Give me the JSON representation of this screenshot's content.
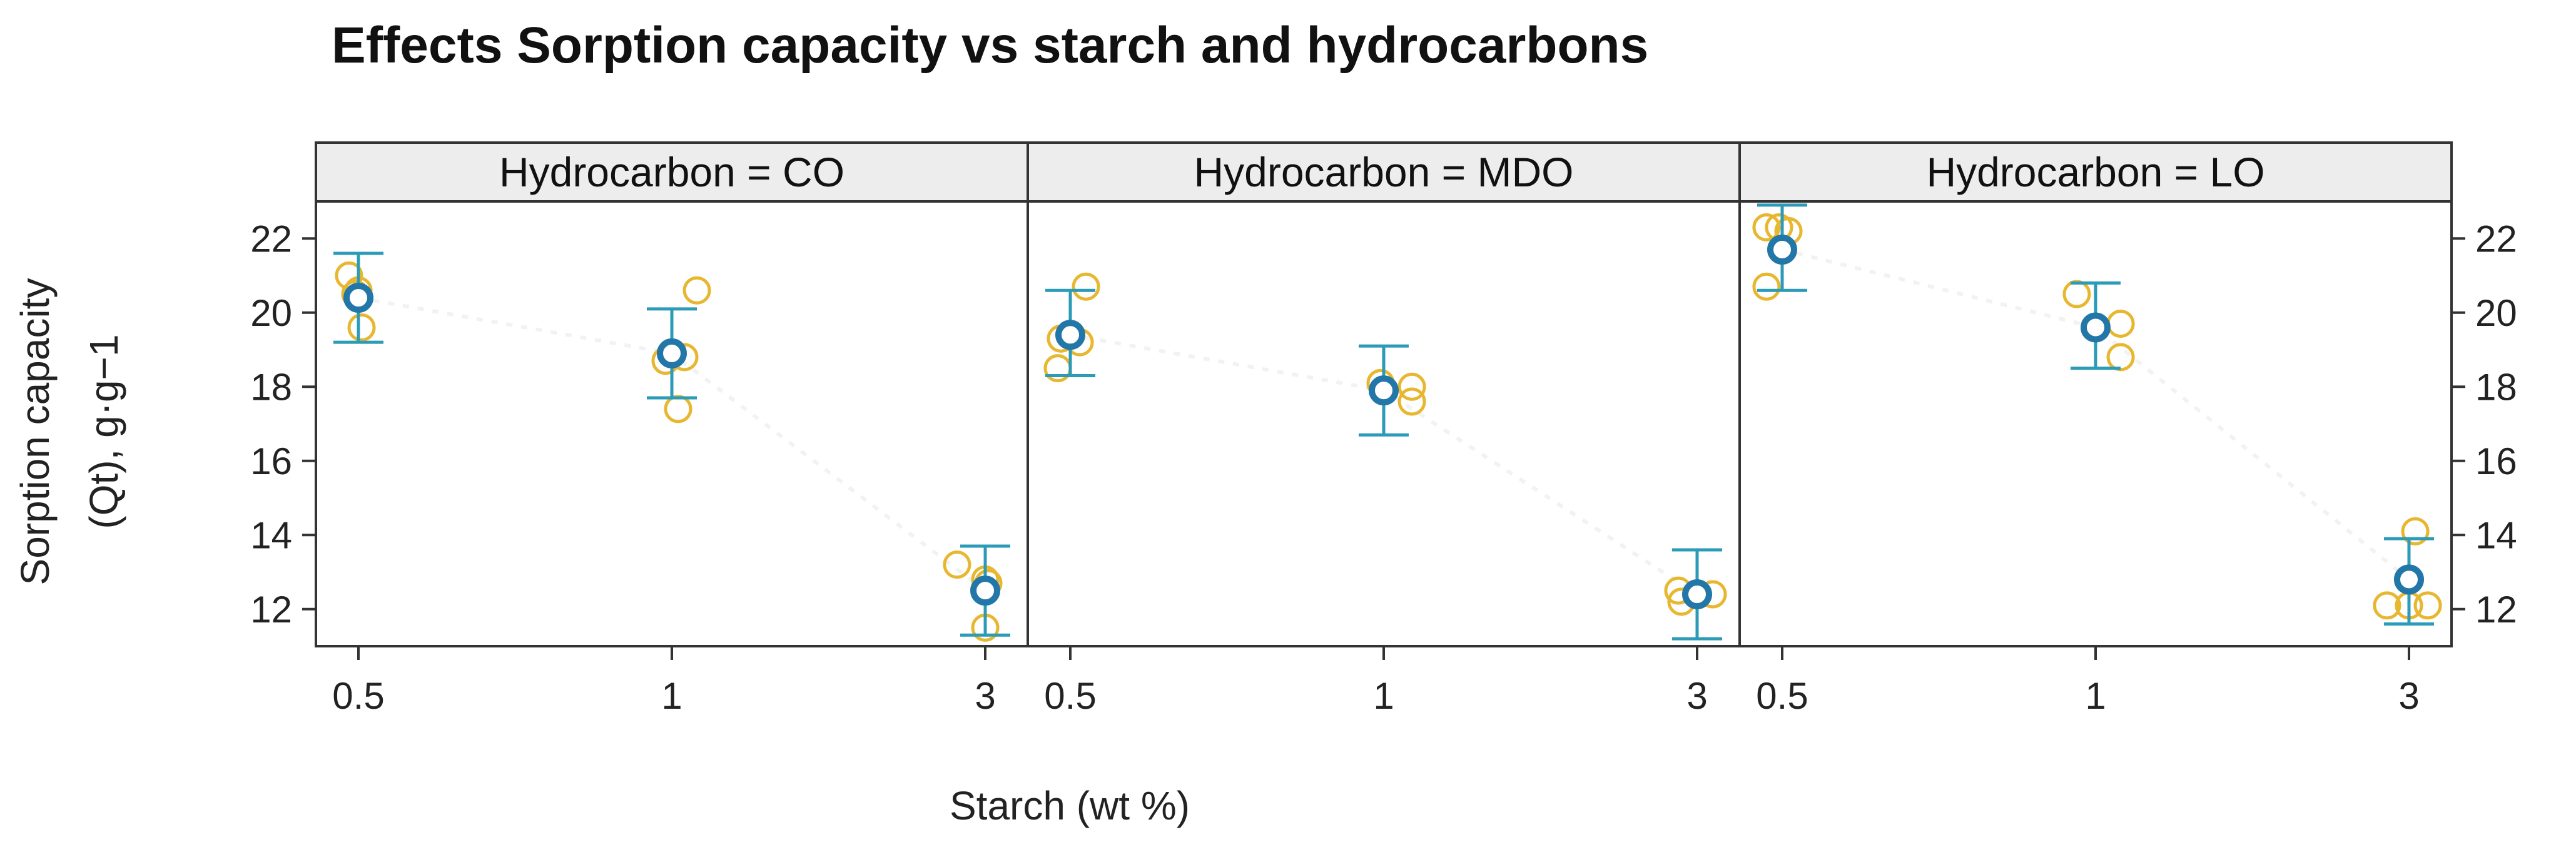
{
  "chart_data": {
    "type": "scatter",
    "title": "Effects Sorption capacity vs starch and hydrocarbons",
    "xlabel": "Starch (wt %)",
    "ylabel_line1": "Sorption capacity",
    "ylabel_line2": "(Qt), g·g−1",
    "categories": [
      "0.5",
      "1",
      "3"
    ],
    "ylim": [
      11,
      23
    ],
    "yticks": [
      12,
      14,
      16,
      18,
      20,
      22
    ],
    "colors": {
      "points": "#e8b730",
      "mean": "#2277a8",
      "errorbar": "#2b9bb8"
    },
    "panels": [
      {
        "strip": "Hydrocarbon = CO",
        "groups": [
          {
            "x": "0.5",
            "mean": 20.4,
            "lower": 19.2,
            "upper": 21.6,
            "points": [
              {
                "dx": -0.03,
                "y": 21.0
              },
              {
                "dx": 0.0,
                "y": 20.6
              },
              {
                "dx": -0.01,
                "y": 20.5
              },
              {
                "dx": 0.01,
                "y": 19.6
              }
            ]
          },
          {
            "x": "1",
            "mean": 18.9,
            "lower": 17.7,
            "upper": 20.1,
            "points": [
              {
                "dx": 0.08,
                "y": 20.6
              },
              {
                "dx": 0.04,
                "y": 18.8
              },
              {
                "dx": -0.02,
                "y": 18.7
              },
              {
                "dx": 0.02,
                "y": 17.4
              }
            ]
          },
          {
            "x": "3",
            "mean": 12.5,
            "lower": 11.3,
            "upper": 13.7,
            "points": [
              {
                "dx": -0.09,
                "y": 13.2
              },
              {
                "dx": 0.0,
                "y": 12.8
              },
              {
                "dx": 0.01,
                "y": 12.7
              },
              {
                "dx": 0.0,
                "y": 11.5
              }
            ]
          }
        ]
      },
      {
        "strip": "Hydrocarbon = MDO",
        "groups": [
          {
            "x": "0.5",
            "mean": 19.4,
            "lower": 18.3,
            "upper": 20.6,
            "points": [
              {
                "dx": 0.05,
                "y": 20.7
              },
              {
                "dx": -0.03,
                "y": 19.3
              },
              {
                "dx": 0.03,
                "y": 19.2
              },
              {
                "dx": -0.04,
                "y": 18.5
              }
            ]
          },
          {
            "x": "1",
            "mean": 17.9,
            "lower": 16.7,
            "upper": 19.1,
            "points": [
              {
                "dx": -0.01,
                "y": 18.1
              },
              {
                "dx": 0.09,
                "y": 18.0
              },
              {
                "dx": 0.0,
                "y": 17.9
              },
              {
                "dx": 0.09,
                "y": 17.6
              }
            ]
          },
          {
            "x": "3",
            "mean": 12.4,
            "lower": 11.2,
            "upper": 13.6,
            "points": [
              {
                "dx": -0.06,
                "y": 12.5
              },
              {
                "dx": 0.05,
                "y": 12.4
              },
              {
                "dx": 0.0,
                "y": 12.4
              },
              {
                "dx": -0.05,
                "y": 12.2
              }
            ]
          }
        ]
      },
      {
        "strip": "Hydrocarbon = LO",
        "groups": [
          {
            "x": "0.5",
            "mean": 21.7,
            "lower": 20.6,
            "upper": 22.9,
            "points": [
              {
                "dx": -0.05,
                "y": 22.3
              },
              {
                "dx": -0.01,
                "y": 22.3
              },
              {
                "dx": 0.02,
                "y": 22.2
              },
              {
                "dx": -0.05,
                "y": 20.7
              }
            ]
          },
          {
            "x": "1",
            "mean": 19.6,
            "lower": 18.5,
            "upper": 20.8,
            "points": [
              {
                "dx": -0.06,
                "y": 20.5
              },
              {
                "dx": 0.08,
                "y": 19.7
              },
              {
                "dx": 0.0,
                "y": 19.6
              },
              {
                "dx": 0.08,
                "y": 18.8
              }
            ]
          },
          {
            "x": "3",
            "mean": 12.8,
            "lower": 11.6,
            "upper": 13.9,
            "points": [
              {
                "dx": -0.07,
                "y": 12.1
              },
              {
                "dx": 0.0,
                "y": 12.1
              },
              {
                "dx": 0.06,
                "y": 12.1
              },
              {
                "dx": 0.02,
                "y": 14.1
              }
            ]
          }
        ]
      }
    ]
  }
}
